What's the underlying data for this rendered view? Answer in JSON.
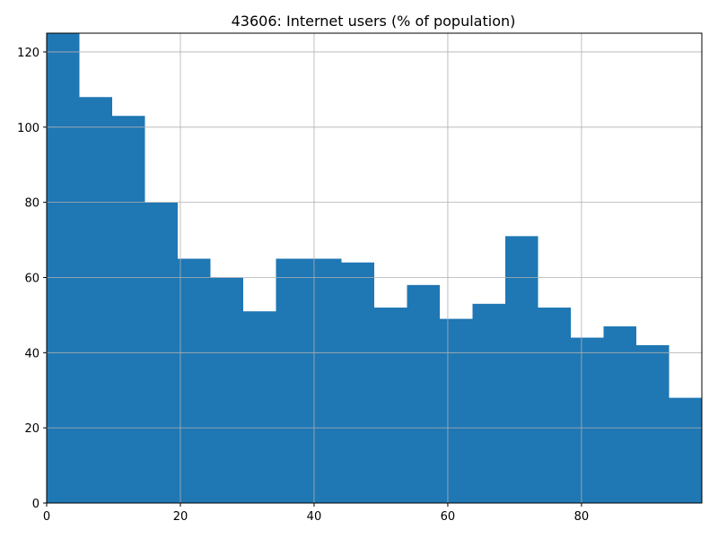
{
  "chart_data": {
    "type": "bar",
    "title": "43606: Internet users (% of population)",
    "xlabel": "",
    "ylabel": "",
    "bin_width": 4.9,
    "bin_start": 0,
    "values": [
      125,
      108,
      103,
      80,
      65,
      60,
      51,
      65,
      65,
      64,
      52,
      58,
      49,
      53,
      71,
      52,
      44,
      47,
      42,
      28
    ],
    "xlim": [
      0,
      98
    ],
    "ylim": [
      0,
      125
    ],
    "x_ticks": [
      0,
      20,
      40,
      60,
      80
    ],
    "y_ticks": [
      0,
      20,
      40,
      60,
      80,
      100,
      120
    ],
    "grid": true,
    "bar_color": "#1f77b4"
  }
}
